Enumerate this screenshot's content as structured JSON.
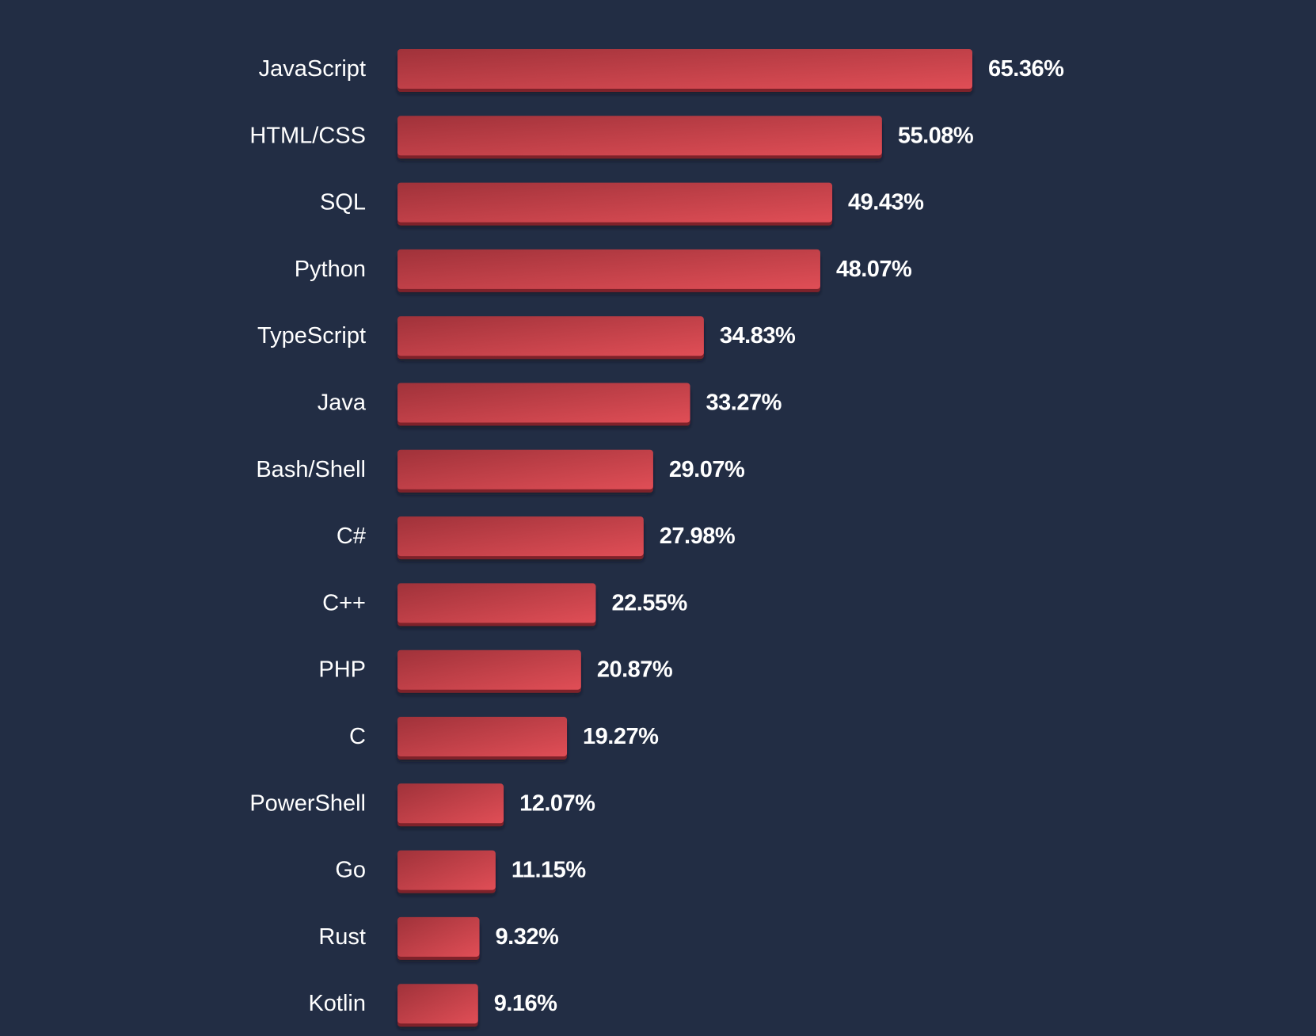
{
  "chart_data": {
    "type": "bar",
    "orientation": "horizontal",
    "title": "",
    "xlabel": "",
    "ylabel": "",
    "xlim": [
      0,
      65.36
    ],
    "grid": false,
    "categories": [
      "JavaScript",
      "HTML/CSS",
      "SQL",
      "Python",
      "TypeScript",
      "Java",
      "Bash/Shell",
      "C#",
      "C++",
      "PHP",
      "C",
      "PowerShell",
      "Go",
      "Rust",
      "Kotlin"
    ],
    "values": [
      65.36,
      55.08,
      49.43,
      48.07,
      34.83,
      33.27,
      29.07,
      27.98,
      22.55,
      20.87,
      19.27,
      12.07,
      11.15,
      9.32,
      9.16
    ],
    "value_labels": [
      "65.36%",
      "55.08%",
      "49.43%",
      "48.07%",
      "34.83%",
      "33.27%",
      "29.07%",
      "27.98%",
      "22.55%",
      "20.87%",
      "19.27%",
      "12.07%",
      "11.15%",
      "9.32%",
      "9.16%"
    ]
  },
  "colors": {
    "background": "#222d44",
    "bar_dark": "#a0323a",
    "bar_light": "#e04e56",
    "bar_shadow": "#7e2329",
    "text": "#ffffff"
  }
}
